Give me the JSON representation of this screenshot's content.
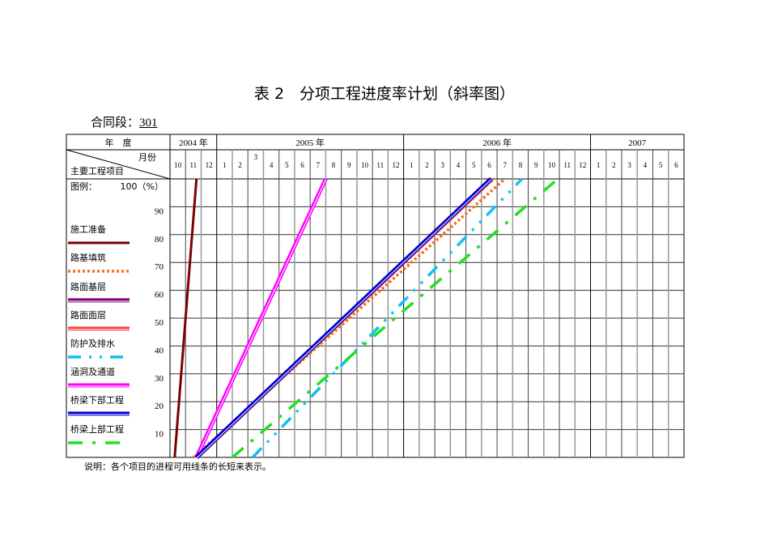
{
  "title": "表 2　分项工程进度率计划（斜率图）",
  "contract": {
    "label": "合同段：",
    "value": "301"
  },
  "note": "说明：各个项目的进程可用线条的长短来表示。",
  "chart_data": {
    "type": "line",
    "header": {
      "year_label": "年　度",
      "month_label": "月份",
      "item_label": "主要工程项目",
      "legend_label": "图例："
    },
    "years": [
      {
        "label": "2004 年",
        "months": [
          "10",
          "11",
          "12"
        ]
      },
      {
        "label": "2005 年",
        "months": [
          "1",
          "2",
          "3",
          "4",
          "5",
          "6",
          "7",
          "8",
          "9",
          "10",
          "11",
          "12"
        ]
      },
      {
        "label": "2006 年",
        "months": [
          "1",
          "2",
          "3",
          "4",
          "5",
          "6",
          "7",
          "8",
          "9",
          "10",
          "11",
          "12"
        ]
      },
      {
        "label": "2007",
        "months": [
          "1",
          "2",
          "3",
          "4",
          "5",
          "6"
        ]
      }
    ],
    "y_ticks": [
      "100（%）",
      "90",
      "80",
      "70",
      "60",
      "50",
      "40",
      "30",
      "20",
      "10"
    ],
    "ylim": [
      0,
      100
    ],
    "grid": true,
    "series": [
      {
        "name": "施工准备",
        "color": "#7b0000",
        "style": "solid",
        "start": "2004-10-10",
        "end": "2004-11-22"
      },
      {
        "name": "路基填筑",
        "color": "#f07020",
        "style": "dotted",
        "start": "2004-11-17",
        "end": "2006-07-16"
      },
      {
        "name": "路面基层",
        "color": "#800080",
        "style": "double",
        "start": "2004-11-22",
        "end": "2006-06-21"
      },
      {
        "name": "路面面层",
        "color": "#ff4040",
        "style": "double",
        "start": "2004-11-23",
        "end": "2006-06-22"
      },
      {
        "name": "防护及排水",
        "color": "#10c0f0",
        "style": "dash-dot-dot",
        "start": "2005-03-10",
        "end": "2006-08-19"
      },
      {
        "name": "涵洞及通道",
        "color": "#ff00ff",
        "style": "double",
        "start": "2004-11-22",
        "end": "2005-07-31"
      },
      {
        "name": "桥梁下部工程",
        "color": "#0000cc",
        "style": "double",
        "start": "2004-11-22",
        "end": "2006-06-19"
      },
      {
        "name": "桥梁上部工程",
        "color": "#20e020",
        "style": "dash-dot",
        "start": "2005-02-01",
        "end": "2006-10-28"
      }
    ]
  }
}
